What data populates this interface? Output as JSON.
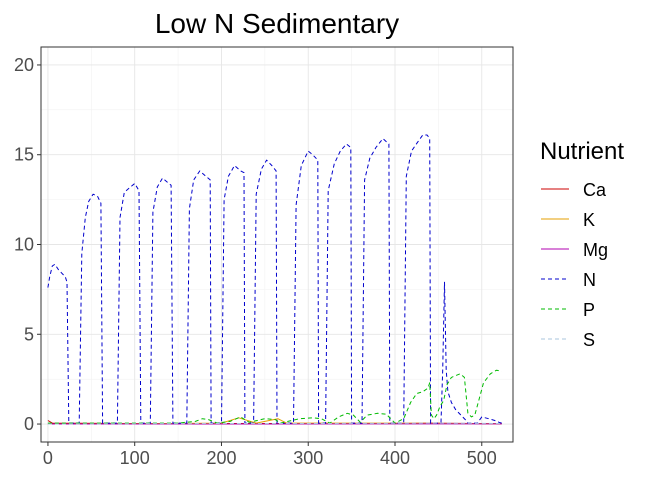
{
  "chart_data": {
    "type": "line",
    "title": "Low N Sedimentary",
    "xlabel": "",
    "ylabel": "",
    "xlim": [
      -8,
      536
    ],
    "ylim": [
      -1,
      21
    ],
    "x_ticks": [
      0,
      100,
      200,
      300,
      400,
      500
    ],
    "y_ticks": [
      0,
      5,
      10,
      15,
      20
    ],
    "grid": true,
    "legend": {
      "title": "Nutrient",
      "position": "right"
    },
    "series": [
      {
        "name": "Ca",
        "color": "#cc0000",
        "dash": "solid",
        "points": [
          [
            0,
            0.2
          ],
          [
            5,
            0.05
          ],
          [
            100,
            0.03
          ],
          [
            200,
            0.03
          ],
          [
            300,
            0.03
          ],
          [
            400,
            0.03
          ],
          [
            440,
            0.05
          ],
          [
            523,
            0.02
          ]
        ]
      },
      {
        "name": "K",
        "color": "#e69f00",
        "dash": "solid",
        "points": [
          [
            0,
            0
          ],
          [
            100,
            0.02
          ],
          [
            200,
            0.05
          ],
          [
            220,
            0.35
          ],
          [
            240,
            0.05
          ],
          [
            265,
            0.3
          ],
          [
            275,
            0.05
          ],
          [
            400,
            0.05
          ],
          [
            523,
            0.02
          ]
        ]
      },
      {
        "name": "Mg",
        "color": "#b000b0",
        "dash": "solid",
        "points": [
          [
            0,
            0
          ],
          [
            523,
            0.01
          ]
        ]
      },
      {
        "name": "N",
        "color": "#0000cc",
        "dash": "dashed",
        "points": [
          [
            0,
            7.6
          ],
          [
            2,
            8.2
          ],
          [
            5,
            8.8
          ],
          [
            8,
            8.9
          ],
          [
            12,
            8.6
          ],
          [
            16,
            8.4
          ],
          [
            20,
            8.2
          ],
          [
            22,
            7.9
          ],
          [
            24,
            0.05
          ],
          [
            36,
            0.05
          ],
          [
            39,
            9.5
          ],
          [
            43,
            11.5
          ],
          [
            47,
            12.4
          ],
          [
            52,
            12.8
          ],
          [
            57,
            12.7
          ],
          [
            61,
            12.3
          ],
          [
            63,
            0.05
          ],
          [
            80,
            0.05
          ],
          [
            83,
            11.5
          ],
          [
            88,
            12.9
          ],
          [
            95,
            13.2
          ],
          [
            100,
            13.4
          ],
          [
            105,
            13.0
          ],
          [
            107,
            0.05
          ],
          [
            118,
            0.05
          ],
          [
            121,
            11.8
          ],
          [
            126,
            13.2
          ],
          [
            132,
            13.7
          ],
          [
            137,
            13.5
          ],
          [
            142,
            13.3
          ],
          [
            144,
            0.05
          ],
          [
            160,
            0.05
          ],
          [
            163,
            12.0
          ],
          [
            168,
            13.6
          ],
          [
            175,
            14.1
          ],
          [
            182,
            13.8
          ],
          [
            187,
            13.6
          ],
          [
            188,
            0.05
          ],
          [
            200,
            0.05
          ],
          [
            203,
            12.5
          ],
          [
            208,
            13.8
          ],
          [
            215,
            14.4
          ],
          [
            222,
            14.1
          ],
          [
            226,
            14.0
          ],
          [
            227,
            0.05
          ],
          [
            237,
            0.05
          ],
          [
            240,
            12.8
          ],
          [
            246,
            14.2
          ],
          [
            252,
            14.7
          ],
          [
            258,
            14.4
          ],
          [
            263,
            14.1
          ],
          [
            264,
            0.05
          ],
          [
            283,
            0.05
          ],
          [
            286,
            12.2
          ],
          [
            292,
            14.4
          ],
          [
            300,
            15.2
          ],
          [
            305,
            15.0
          ],
          [
            311,
            14.7
          ],
          [
            312,
            0.05
          ],
          [
            320,
            0.05
          ],
          [
            323,
            13.0
          ],
          [
            330,
            14.5
          ],
          [
            337,
            15.2
          ],
          [
            344,
            15.6
          ],
          [
            349,
            15.4
          ],
          [
            350,
            0.05
          ],
          [
            362,
            0.05
          ],
          [
            365,
            13.6
          ],
          [
            371,
            14.8
          ],
          [
            378,
            15.4
          ],
          [
            386,
            15.9
          ],
          [
            393,
            15.6
          ],
          [
            394,
            0.05
          ],
          [
            410,
            0.05
          ],
          [
            413,
            13.8
          ],
          [
            419,
            15.2
          ],
          [
            426,
            15.7
          ],
          [
            432,
            16.1
          ],
          [
            437,
            16.1
          ],
          [
            440,
            15.9
          ],
          [
            441,
            0.05
          ],
          [
            450,
            0.05
          ],
          [
            453,
            0.1
          ],
          [
            455,
            3.0
          ],
          [
            457,
            7.9
          ],
          [
            459,
            3.0
          ],
          [
            461,
            1.8
          ],
          [
            465,
            1.2
          ],
          [
            470,
            0.8
          ],
          [
            476,
            0.5
          ],
          [
            482,
            0.2
          ],
          [
            484,
            0.05
          ],
          [
            495,
            0.05
          ],
          [
            500,
            0.4
          ],
          [
            508,
            0.3
          ],
          [
            515,
            0.2
          ],
          [
            520,
            0.1
          ],
          [
            523,
            0.05
          ]
        ]
      },
      {
        "name": "P",
        "color": "#00bb00",
        "dash": "dashed",
        "points": [
          [
            0,
            0.05
          ],
          [
            150,
            0.05
          ],
          [
            170,
            0.15
          ],
          [
            178,
            0.3
          ],
          [
            185,
            0.25
          ],
          [
            195,
            0.05
          ],
          [
            210,
            0.15
          ],
          [
            222,
            0.4
          ],
          [
            232,
            0.1
          ],
          [
            250,
            0.3
          ],
          [
            262,
            0.25
          ],
          [
            268,
            0.05
          ],
          [
            290,
            0.3
          ],
          [
            305,
            0.35
          ],
          [
            315,
            0.3
          ],
          [
            325,
            0.05
          ],
          [
            335,
            0.4
          ],
          [
            345,
            0.6
          ],
          [
            352,
            0.5
          ],
          [
            360,
            0.1
          ],
          [
            368,
            0.5
          ],
          [
            380,
            0.6
          ],
          [
            390,
            0.55
          ],
          [
            400,
            0.05
          ],
          [
            410,
            0.3
          ],
          [
            418,
            1.2
          ],
          [
            425,
            1.7
          ],
          [
            432,
            1.8
          ],
          [
            438,
            2.0
          ],
          [
            440,
            2.3
          ],
          [
            442,
            0.5
          ],
          [
            445,
            0.3
          ],
          [
            448,
            0.5
          ],
          [
            452,
            1.0
          ],
          [
            456,
            1.3
          ],
          [
            460,
            2.2
          ],
          [
            465,
            2.6
          ],
          [
            470,
            2.7
          ],
          [
            475,
            2.8
          ],
          [
            480,
            2.6
          ],
          [
            484,
            0.6
          ],
          [
            488,
            0.4
          ],
          [
            492,
            0.5
          ],
          [
            497,
            1.4
          ],
          [
            502,
            2.3
          ],
          [
            510,
            2.8
          ],
          [
            517,
            3.0
          ],
          [
            523,
            2.95
          ]
        ]
      },
      {
        "name": "S",
        "color": "#a8c4dc",
        "dash": "dashed",
        "points": [
          [
            0,
            0
          ],
          [
            100,
            0.02
          ],
          [
            200,
            0.03
          ],
          [
            300,
            0.03
          ],
          [
            400,
            0.04
          ],
          [
            450,
            0.05
          ],
          [
            523,
            0.03
          ]
        ]
      }
    ]
  }
}
